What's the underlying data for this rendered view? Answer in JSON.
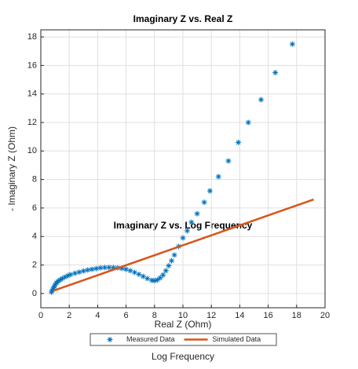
{
  "chart_data": {
    "type": "scatter",
    "title": "Imaginary Z vs. Real Z",
    "x_label": "Real Z (Ohm)",
    "y_label": "- Imaginary Z (Ohm)",
    "annotations": [
      "Imaginary Z vs. Log Frequency",
      "Log Frequency"
    ],
    "xlim": [
      0,
      20
    ],
    "ylim": [
      -1,
      18.5
    ],
    "xticks": [
      0,
      2,
      4,
      6,
      8,
      10,
      12,
      14,
      16,
      18,
      20
    ],
    "yticks": [
      0,
      2,
      4,
      6,
      8,
      10,
      12,
      14,
      16,
      18
    ],
    "grid": true,
    "legend": "bottom",
    "series": [
      {
        "name": "Measured Data",
        "color": "#0072BD",
        "kind": "marker",
        "x": [
          0.75,
          0.8,
          0.85,
          0.9,
          0.95,
          1.0,
          1.1,
          1.2,
          1.35,
          1.5,
          1.7,
          1.9,
          2.1,
          2.4,
          2.7,
          3.0,
          3.3,
          3.6,
          3.9,
          4.2,
          4.5,
          4.8,
          5.1,
          5.4,
          5.7,
          6.0,
          6.3,
          6.6,
          6.9,
          7.2,
          7.5,
          7.8,
          8.0,
          8.2,
          8.4,
          8.6,
          8.8,
          9.0,
          9.2,
          9.4,
          9.7,
          10.0,
          10.3,
          10.6,
          11.0,
          11.5,
          11.9,
          12.5,
          13.2,
          13.9,
          14.6,
          15.5,
          16.5,
          17.7
        ],
        "values": [
          0.1,
          0.2,
          0.3,
          0.4,
          0.5,
          0.6,
          0.75,
          0.85,
          0.95,
          1.05,
          1.15,
          1.25,
          1.33,
          1.42,
          1.5,
          1.58,
          1.65,
          1.7,
          1.75,
          1.8,
          1.82,
          1.83,
          1.82,
          1.8,
          1.76,
          1.7,
          1.6,
          1.48,
          1.35,
          1.2,
          1.05,
          0.93,
          0.9,
          0.95,
          1.1,
          1.3,
          1.6,
          1.95,
          2.3,
          2.7,
          3.3,
          3.9,
          4.4,
          5.0,
          5.6,
          6.4,
          7.2,
          8.2,
          9.3,
          10.6,
          12.0,
          13.6,
          15.5,
          17.5
        ]
      },
      {
        "name": "Simulated Data",
        "color": "#D95319",
        "kind": "line",
        "x": [
          0.9,
          19.2
        ],
        "values": [
          0.2,
          6.6
        ]
      }
    ]
  }
}
